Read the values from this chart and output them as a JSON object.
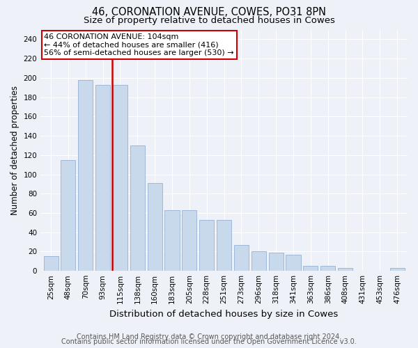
{
  "title1": "46, CORONATION AVENUE, COWES, PO31 8PN",
  "title2": "Size of property relative to detached houses in Cowes",
  "xlabel": "Distribution of detached houses by size in Cowes",
  "ylabel": "Number of detached properties",
  "categories": [
    "25sqm",
    "48sqm",
    "70sqm",
    "93sqm",
    "115sqm",
    "138sqm",
    "160sqm",
    "183sqm",
    "205sqm",
    "228sqm",
    "251sqm",
    "273sqm",
    "296sqm",
    "318sqm",
    "341sqm",
    "363sqm",
    "386sqm",
    "408sqm",
    "431sqm",
    "453sqm",
    "476sqm"
  ],
  "values": [
    15,
    115,
    198,
    193,
    193,
    130,
    91,
    63,
    63,
    53,
    53,
    27,
    20,
    19,
    17,
    5,
    5,
    3,
    0,
    0,
    3
  ],
  "bar_color": "#c9d9ec",
  "bar_edge_color": "#a0b8d8",
  "red_line_x": 3.55,
  "annotation_title": "46 CORONATION AVENUE: 104sqm",
  "annotation_line1": "← 44% of detached houses are smaller (416)",
  "annotation_line2": "56% of semi-detached houses are larger (530) →",
  "annotation_box_color": "#ffffff",
  "annotation_border_color": "#cc0000",
  "red_line_color": "#cc0000",
  "ylim": [
    0,
    250
  ],
  "yticks": [
    0,
    20,
    40,
    60,
    80,
    100,
    120,
    140,
    160,
    180,
    200,
    220,
    240
  ],
  "footer1": "Contains HM Land Registry data © Crown copyright and database right 2024.",
  "footer2": "Contains public sector information licensed under the Open Government Licence v3.0.",
  "bg_color": "#eef2f8",
  "grid_color": "#ffffff",
  "title1_fontsize": 10.5,
  "title2_fontsize": 9.5,
  "xlabel_fontsize": 9.5,
  "ylabel_fontsize": 8.5,
  "footer_fontsize": 7,
  "annot_fontsize": 8,
  "tick_fontsize": 7.5
}
